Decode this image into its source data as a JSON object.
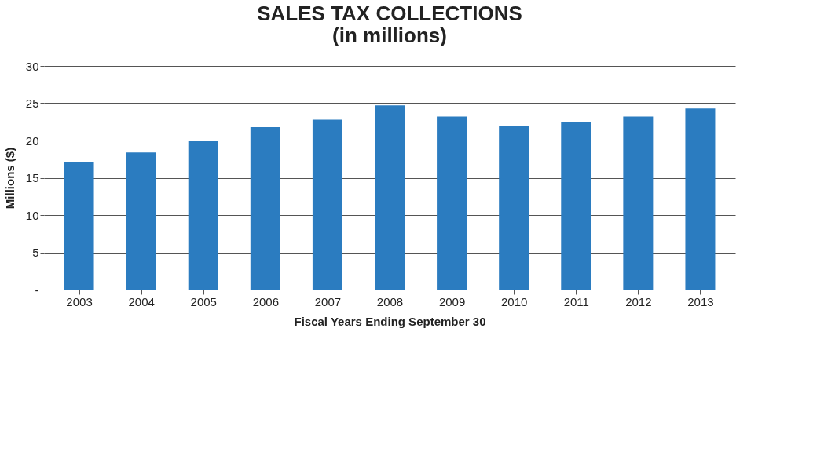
{
  "chart_data": {
    "type": "bar",
    "title": [
      "SALES TAX COLLECTIONS",
      "(in millions)"
    ],
    "xlabel": "Fiscal Years Ending September 30",
    "ylabel": "Millions ($)",
    "categories": [
      "2003",
      "2004",
      "2005",
      "2006",
      "2007",
      "2008",
      "2009",
      "2010",
      "2011",
      "2012",
      "2013"
    ],
    "series": [
      {
        "color": "#2b7cc0",
        "values": [
          17.1,
          18.4,
          20.0,
          21.8,
          22.8,
          24.7,
          23.2,
          22.0,
          22.5,
          23.2,
          24.3
        ]
      }
    ],
    "ylim": [
      0,
      30
    ],
    "yticks": [
      {
        "value": 0,
        "label": "-"
      },
      5,
      10,
      15,
      20,
      25,
      30
    ],
    "grid": "y"
  }
}
